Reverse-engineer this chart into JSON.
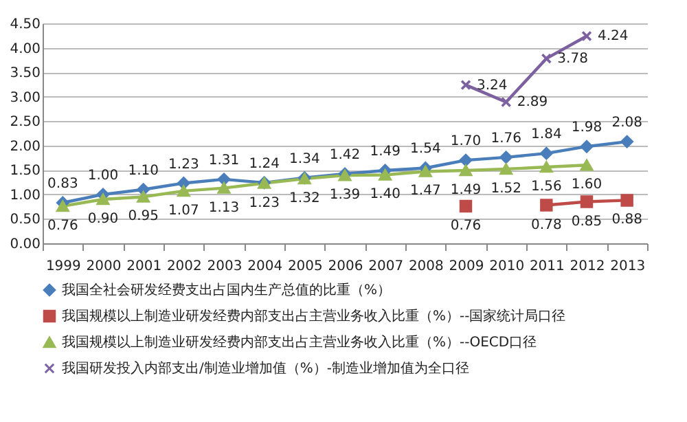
{
  "chart_data": {
    "type": "line",
    "categories": [
      "1999",
      "2000",
      "2001",
      "2002",
      "2003",
      "2004",
      "2005",
      "2006",
      "2007",
      "2008",
      "2009",
      "2010",
      "2011",
      "2012",
      "2013"
    ],
    "series": [
      {
        "name": "我国全社会研发经费支出占国内生产总值的比重（%）",
        "color": "#4a7ebb",
        "marker": "diamond",
        "values": [
          0.83,
          1.0,
          1.1,
          1.23,
          1.31,
          1.24,
          1.34,
          1.42,
          1.49,
          1.54,
          1.7,
          1.76,
          1.84,
          1.98,
          2.08
        ],
        "value_labels": [
          "0.83",
          "1.00",
          "1.10",
          "1.23",
          "1.31",
          "1.24",
          "1.34",
          "1.42",
          "1.49",
          "1.54",
          "1.70",
          "1.76",
          "1.84",
          "1.98",
          "2.08"
        ]
      },
      {
        "name": "我国规模以上制造业研发经费内部支出占主营业务收入比重（%）--国家统计局口径",
        "color": "#be4b48",
        "marker": "square",
        "values": [
          null,
          null,
          null,
          null,
          null,
          null,
          null,
          null,
          null,
          null,
          0.76,
          null,
          0.78,
          0.85,
          0.88
        ],
        "value_labels": [
          null,
          null,
          null,
          null,
          null,
          null,
          null,
          null,
          null,
          null,
          "0.76",
          null,
          "0.78",
          "0.85",
          "0.88"
        ]
      },
      {
        "name": "我国规模以上制造业研发经费内部支出占主营业务收入比重（%）--OECD口径",
        "color": "#98b954",
        "marker": "triangle",
        "values": [
          0.76,
          0.9,
          0.95,
          1.07,
          1.13,
          1.23,
          1.32,
          1.39,
          1.4,
          1.47,
          1.49,
          1.52,
          1.56,
          1.6,
          null
        ],
        "value_labels": [
          "0.76",
          "0.90",
          "0.95",
          "1.07",
          "1.13",
          "1.23",
          "1.32",
          "1.39",
          "1.40",
          "1.47",
          "1.49",
          "1.52",
          "1.56",
          "1.60",
          null
        ]
      },
      {
        "name": "我国研发投入内部支出/制造业增加值（%）-制造业增加值为全口径",
        "color": "#7d60a0",
        "marker": "cross",
        "values": [
          null,
          null,
          null,
          null,
          null,
          null,
          null,
          null,
          null,
          null,
          3.24,
          2.89,
          3.78,
          4.24,
          null
        ],
        "value_labels": [
          null,
          null,
          null,
          null,
          null,
          null,
          null,
          null,
          null,
          null,
          "3.24",
          "2.89",
          "3.78",
          "4.24",
          null
        ]
      }
    ],
    "ylim": [
      0,
      4.5
    ],
    "yticks": [
      {
        "value": 0,
        "label": "0.00"
      },
      {
        "value": 0.5,
        "label": "0.50"
      },
      {
        "value": 1,
        "label": "1.00"
      },
      {
        "value": 1.5,
        "label": "1.50"
      },
      {
        "value": 2,
        "label": "2.00"
      },
      {
        "value": 2.5,
        "label": "2.50"
      },
      {
        "value": 3,
        "label": "3.00"
      },
      {
        "value": 3.5,
        "label": "3.50"
      },
      {
        "value": 4,
        "label": "4.00"
      },
      {
        "value": 4.5,
        "label": "4.50"
      }
    ],
    "grid": "y",
    "legend": "bottom",
    "line_style": "solid"
  }
}
